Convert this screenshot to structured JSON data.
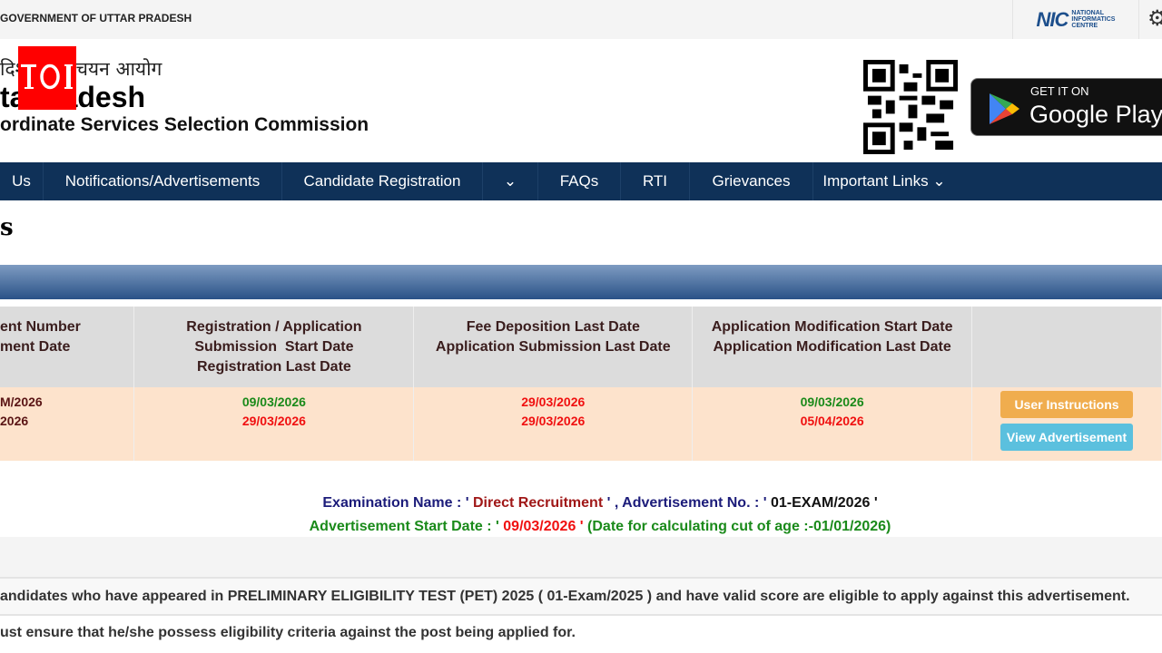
{
  "topbar": {
    "government": "GOVERNMENT OF UTTAR PRADESH",
    "nic_logo": "NIC",
    "nic_text": [
      "NATIONAL",
      "INFORMATICS",
      "CENTRE"
    ],
    "settings_icon": "gear-icon"
  },
  "header": {
    "hindi_title": "दिश्‍थ सेवा चयन आयोग",
    "title": "ta   radesh",
    "subtitle": "ordinate Services Selection Commission",
    "watermark": "TOI",
    "play_small": "GET IT ON",
    "play_big": "Google Play"
  },
  "nav": {
    "items": [
      "Us",
      "Notifications/Advertisements",
      "Candidate Registration",
      "⌄",
      "FAQs",
      "RTI",
      "Grievances",
      "Important Links ⌄"
    ]
  },
  "page": {
    "title": "s"
  },
  "table": {
    "headers": [
      [
        "ent Number",
        "ment Date"
      ],
      [
        "Registration / Application",
        "Submission  Start Date",
        "Registration Last Date"
      ],
      [
        "Fee Deposition Last Date",
        "Application Submission Last Date"
      ],
      [
        "Application Modification Start Date",
        "Application Modification Last Date"
      ],
      [
        ""
      ]
    ],
    "row": {
      "adv_no": "M/2026",
      "adv_date": "2026",
      "reg_start": "09/03/2026",
      "reg_last": "29/03/2026",
      "fee_last": "29/03/2026",
      "app_last": "29/03/2026",
      "mod_start": "09/03/2026",
      "mod_last": "05/04/2026"
    },
    "buttons": {
      "instructions": "User Instructions",
      "view": "View Advertisement"
    }
  },
  "colors": {
    "nav": "#0f3158",
    "green": "#1a8a1a",
    "red": "#f01010",
    "orange_btn": "#f0ad4e",
    "blue_btn": "#5bc0de"
  },
  "info": {
    "l1a": "Examination Name : ' ",
    "l1b": "Direct Recruitment",
    "l1c": " ' , Advertisement No. : ' ",
    "l1d": "01-EXAM/2026 '",
    "l2a": "Advertisement Start Date : ' ",
    "l2b": "09/03/2026 '",
    "l2c": " (Date for calculating cut of age :-01/01/2026)"
  },
  "notes": [
    "andidates who have appeared in PRELIMINARY ELIGIBILITY TEST (PET) 2025 ( 01-Exam/2025 ) and have valid score are eligible to apply against this advertisement.",
    "ust ensure that he/she possess eligibility criteria against the post being applied for."
  ]
}
